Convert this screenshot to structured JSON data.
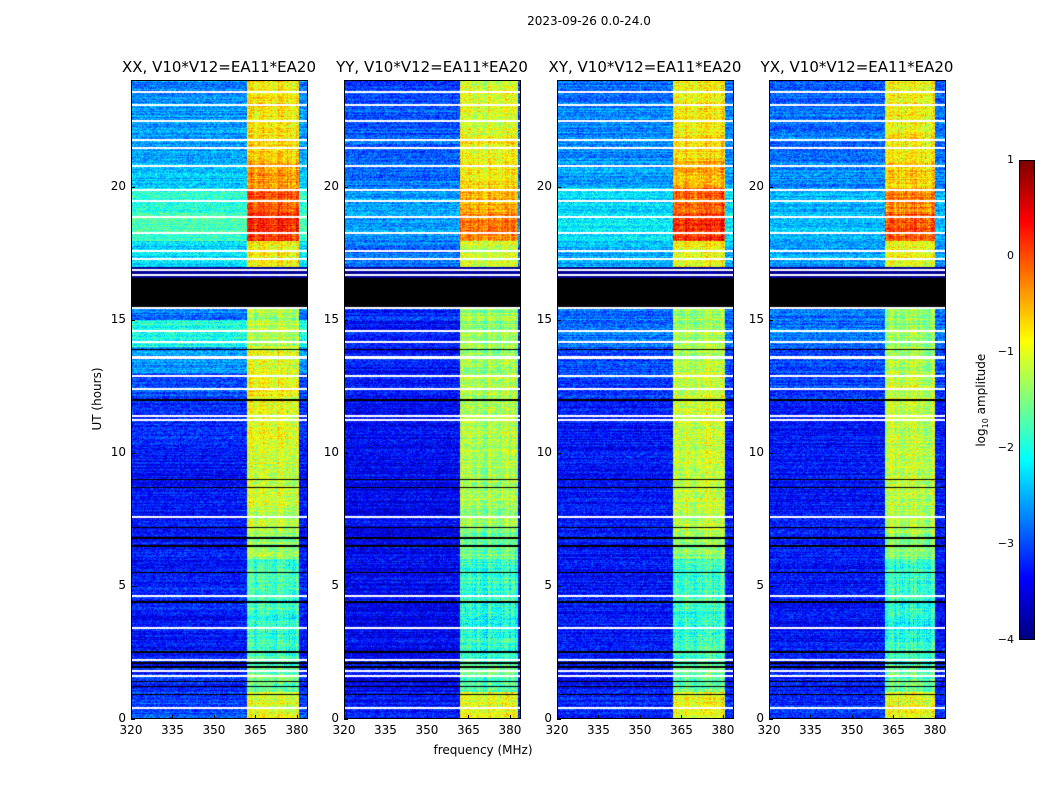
{
  "suptitle": "2023-09-26 0.0-24.0",
  "xlabel": "frequency (MHz)",
  "ylabel": "UT (hours)",
  "colorbar": {
    "label_main": "log",
    "label_sub": "10",
    "label_rest": " amplitude",
    "ticks": [
      "1",
      "0",
      "−1",
      "−2",
      "−3",
      "−4"
    ],
    "tick_values": [
      1,
      0,
      -1,
      -2,
      -3,
      -4
    ],
    "range": [
      -4,
      1
    ],
    "colormap": "jet"
  },
  "chart_data": [
    {
      "type": "heatmap",
      "title": "XX, V10*V12=EA11*EA20",
      "xlim": [
        320,
        384
      ],
      "ylim": [
        0,
        24
      ],
      "xticks": [
        "320",
        "335",
        "350",
        "365",
        "380"
      ],
      "xtick_values": [
        320,
        335,
        350,
        365,
        380
      ],
      "yticks": [
        "0",
        "5",
        "10",
        "15",
        "20"
      ],
      "ytick_values": [
        0,
        5,
        10,
        15,
        20
      ],
      "band_mhz": [
        362,
        381
      ],
      "hourly_background_log": [
        -3.0,
        -3.2,
        -3.3,
        -3.3,
        -3.2,
        -3.3,
        -3.3,
        -3.3,
        -3.3,
        -3.3,
        -3.2,
        -3.2,
        -3.0,
        -2.6,
        -2.0,
        -2.8,
        -4,
        -2.3,
        -1.8,
        -1.9,
        -2.4,
        -2.6,
        -2.6,
        -2.7
      ],
      "hourly_band_log": [
        -1.0,
        -1.6,
        -1.8,
        -1.9,
        -1.8,
        -1.8,
        -1.4,
        -1.2,
        -1.1,
        -1.1,
        -1.0,
        -1.0,
        -0.9,
        -1.0,
        -1.2,
        -1.3,
        -4,
        -0.9,
        0.2,
        0.0,
        -0.4,
        -0.7,
        -0.8,
        -0.8
      ]
    },
    {
      "type": "heatmap",
      "title": "YY, V10*V12=EA11*EA20",
      "xlim": [
        320,
        384
      ],
      "ylim": [
        0,
        24
      ],
      "xticks": [
        "320",
        "335",
        "350",
        "365",
        "380"
      ],
      "xtick_values": [
        320,
        335,
        350,
        365,
        380
      ],
      "yticks": [
        "0",
        "5",
        "10",
        "15",
        "20"
      ],
      "ytick_values": [
        0,
        5,
        10,
        15,
        20
      ],
      "band_mhz": [
        362,
        383
      ],
      "hourly_background_log": [
        -3.3,
        -3.4,
        -3.4,
        -3.4,
        -3.4,
        -3.4,
        -3.4,
        -3.4,
        -3.4,
        -3.4,
        -3.4,
        -3.4,
        -3.3,
        -3.3,
        -3.3,
        -3.2,
        -4,
        -2.8,
        -2.6,
        -2.6,
        -2.8,
        -2.9,
        -2.9,
        -3.0
      ],
      "hourly_band_log": [
        -1.0,
        -1.7,
        -1.9,
        -2.0,
        -1.9,
        -1.9,
        -1.6,
        -1.4,
        -1.3,
        -1.3,
        -1.3,
        -1.3,
        -1.3,
        -1.4,
        -1.4,
        -1.4,
        -4,
        -1.1,
        -0.2,
        -0.5,
        -0.8,
        -0.9,
        -1.0,
        -1.0
      ]
    },
    {
      "type": "heatmap",
      "title": "XY, V10*V12=EA11*EA20",
      "xlim": [
        320,
        384
      ],
      "ylim": [
        0,
        24
      ],
      "xticks": [
        "320",
        "335",
        "350",
        "365",
        "380"
      ],
      "xtick_values": [
        320,
        335,
        350,
        365,
        380
      ],
      "yticks": [
        "0",
        "5",
        "10",
        "15",
        "20"
      ],
      "ytick_values": [
        0,
        5,
        10,
        15,
        20
      ],
      "band_mhz": [
        362,
        381
      ],
      "hourly_background_log": [
        -3.2,
        -3.3,
        -3.3,
        -3.3,
        -3.3,
        -3.3,
        -3.3,
        -3.3,
        -3.3,
        -3.3,
        -3.3,
        -3.3,
        -3.1,
        -3.0,
        -2.8,
        -2.8,
        -4,
        -2.5,
        -2.2,
        -2.3,
        -2.6,
        -2.7,
        -2.7,
        -2.8
      ],
      "hourly_band_log": [
        -0.9,
        -1.6,
        -1.8,
        -1.9,
        -1.8,
        -1.8,
        -1.4,
        -1.2,
        -1.1,
        -1.1,
        -1.1,
        -1.1,
        -1.1,
        -1.2,
        -1.3,
        -1.3,
        -4,
        -0.9,
        0.2,
        -0.1,
        -0.5,
        -0.7,
        -0.8,
        -0.8
      ]
    },
    {
      "type": "heatmap",
      "title": "YX, V10*V12=EA11*EA20",
      "xlim": [
        320,
        384
      ],
      "ylim": [
        0,
        24
      ],
      "xticks": [
        "320",
        "335",
        "350",
        "365",
        "380"
      ],
      "xtick_values": [
        320,
        335,
        350,
        365,
        380
      ],
      "yticks": [
        "0",
        "5",
        "10",
        "15",
        "20"
      ],
      "ytick_values": [
        0,
        5,
        10,
        15,
        20
      ],
      "band_mhz": [
        362,
        380
      ],
      "hourly_background_log": [
        -3.2,
        -3.3,
        -3.3,
        -3.3,
        -3.3,
        -3.3,
        -3.3,
        -3.3,
        -3.3,
        -3.3,
        -3.3,
        -3.3,
        -3.1,
        -3.0,
        -2.8,
        -2.8,
        -4,
        -2.6,
        -2.4,
        -2.5,
        -2.7,
        -2.8,
        -2.8,
        -2.9
      ],
      "hourly_band_log": [
        -1.0,
        -1.7,
        -1.9,
        -2.0,
        -1.9,
        -1.9,
        -1.5,
        -1.3,
        -1.2,
        -1.2,
        -1.2,
        -1.2,
        -1.2,
        -1.3,
        -1.4,
        -1.4,
        -4,
        -1.0,
        0.0,
        -0.3,
        -0.7,
        -0.8,
        -0.9,
        -0.9
      ]
    }
  ],
  "flagged_hours_white": [
    23.6,
    23.1,
    22.5,
    21.8,
    21.5,
    20.8,
    19.9,
    19.5,
    18.9,
    18.3,
    17.6,
    17.3,
    16.9,
    16.7,
    15.45,
    14.6,
    14.2,
    13.6,
    12.9,
    12.4,
    11.4,
    11.25,
    7.6,
    4.6,
    3.4,
    2.2,
    1.8,
    1.6,
    0.4
  ],
  "flagged_hours_black": [
    13.9,
    12.0,
    9.0,
    8.7,
    7.2,
    6.8,
    6.5,
    5.5,
    4.4,
    2.5,
    2.1,
    1.95,
    1.4,
    1.2,
    0.9
  ],
  "flagged_range_black": [
    15.5,
    16.6
  ]
}
